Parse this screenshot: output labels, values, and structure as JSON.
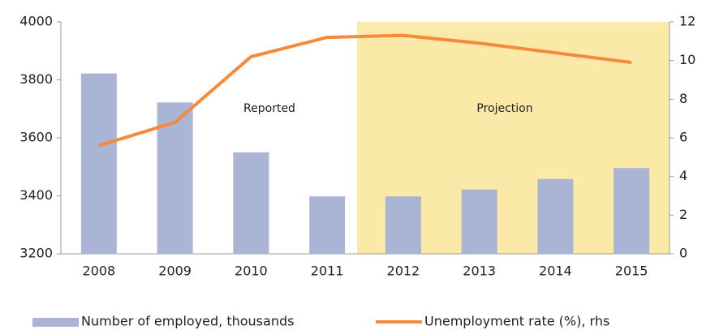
{
  "chart_data": {
    "type": "bar-line",
    "categories": [
      "2008",
      "2009",
      "2010",
      "2011",
      "2012",
      "2013",
      "2014",
      "2015"
    ],
    "series": [
      {
        "name": "Number of employed, thousands",
        "type": "bar",
        "color": "#aab4d4",
        "values": [
          3822,
          3722,
          3550,
          3398,
          3398,
          3422,
          3458,
          3496
        ]
      },
      {
        "name": "Unemployment rate (%), rhs",
        "type": "line",
        "axis": "y2",
        "color": "#f7893b",
        "values": [
          5.6,
          6.8,
          10.2,
          11.2,
          11.3,
          10.9,
          10.4,
          9.9
        ]
      }
    ],
    "ylim": [
      3200,
      4000
    ],
    "yticks": [
      3200,
      3400,
      3600,
      3800,
      4000
    ],
    "y2lim": [
      0,
      12
    ],
    "y2ticks": [
      0,
      2,
      4,
      6,
      8,
      10,
      12
    ],
    "annotations": [
      "Reported",
      "Projection"
    ],
    "shade_color": "#fbe9a8",
    "grid": false
  }
}
